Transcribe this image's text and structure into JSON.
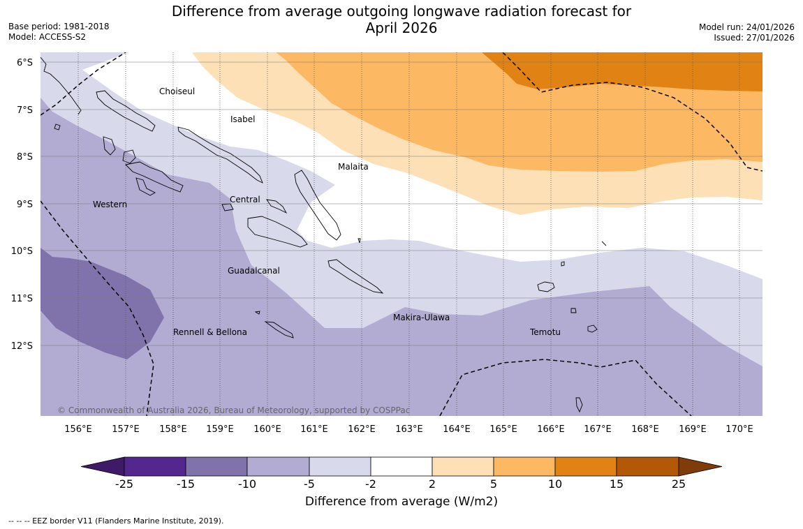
{
  "header": {
    "title_line1": "Difference from average outgoing longwave radiation forecast for",
    "title_line2": "April 2026",
    "base_period": "Base period: 1981-2018",
    "model": "Model: ACCESS-S2",
    "model_run": "Model run: 24/01/2026",
    "issued": "Issued: 27/01/2026"
  },
  "map": {
    "lat_labels": [
      "6°S",
      "7°S",
      "8°S",
      "9°S",
      "10°S",
      "11°S",
      "12°S"
    ],
    "lon_labels": [
      "156°E",
      "157°E",
      "158°E",
      "159°E",
      "160°E",
      "161°E",
      "162°E",
      "163°E",
      "164°E",
      "165°E",
      "166°E",
      "167°E",
      "168°E",
      "169°E",
      "170°E"
    ],
    "place_labels": {
      "choiseul": "Choiseul",
      "isabel": "Isabel",
      "malaita": "Malaita",
      "western": "Western",
      "central": "Central",
      "guadalcanal": "Guadalcanal",
      "rennell": "Rennell & Bellona",
      "makira": "Makira-Ulawa",
      "temotu": "Temotu"
    },
    "copyright": "© Commonwealth of Australia 2026, Bureau of Meteorology, supported by COSPPac"
  },
  "colorbar": {
    "title": "Difference from average (W/m2)",
    "ticks": [
      "-25",
      "-15",
      "-10",
      "-5",
      "-2",
      "2",
      "5",
      "10",
      "15",
      "25"
    ],
    "colors": [
      "#3f1a66",
      "#54278f",
      "#8073ac",
      "#b2abd2",
      "#d8daeb",
      "#ffffff",
      "#fee0b6",
      "#fdb863",
      "#e08214",
      "#b35806",
      "#7f3b08"
    ]
  },
  "footer": {
    "eez_note": "--  --  -- EEZ border V11 (Flanders Marine Institute, 2019)."
  }
}
